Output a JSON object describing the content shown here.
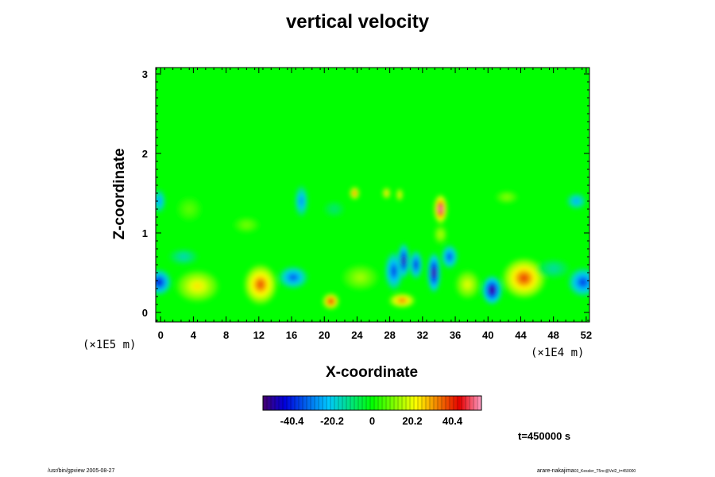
{
  "chart_data": {
    "type": "heatmap",
    "title": "vertical velocity",
    "xlabel": "X-coordinate",
    "ylabel": "Z-coordinate",
    "x_scale_note": "(×1E4 m)",
    "y_scale_note": "(×1E5 m)",
    "xlim": [
      -0.6,
      52.4
    ],
    "ylim": [
      -0.12,
      3.08
    ],
    "x_ticks": [
      0,
      4,
      8,
      12,
      16,
      20,
      24,
      28,
      32,
      36,
      40,
      44,
      48,
      52
    ],
    "x_tick_labels": [
      "0",
      "4",
      "8",
      "12",
      "16",
      "20",
      "24",
      "28",
      "32",
      "36",
      "40",
      "44",
      "48",
      "52"
    ],
    "y_ticks": [
      0,
      1,
      2,
      3
    ],
    "y_tick_labels": [
      "0",
      "1",
      "2",
      "3"
    ],
    "colorbar": {
      "range": [
        -55,
        55
      ],
      "ticks": [
        -40.4,
        -20.2,
        0,
        20.2,
        40.4
      ],
      "tick_labels": [
        "-40.4",
        "-20.2",
        "0",
        "20.2",
        "40.4"
      ]
    },
    "time_label": "t=450000 s",
    "background_value": 0,
    "features": [
      {
        "x": -0.2,
        "z": 0.38,
        "rx": 1.5,
        "rz": 0.16,
        "v": -44
      },
      {
        "x": 4.5,
        "z": 0.33,
        "rx": 2.6,
        "rz": 0.2,
        "v": 24
      },
      {
        "x": 12.2,
        "z": 0.35,
        "rx": 2.0,
        "rz": 0.25,
        "v": 37
      },
      {
        "x": 16.2,
        "z": 0.44,
        "rx": 1.8,
        "rz": 0.14,
        "v": -35
      },
      {
        "x": 20.8,
        "z": 0.14,
        "rx": 1.0,
        "rz": 0.1,
        "v": 45
      },
      {
        "x": 24.4,
        "z": 0.44,
        "rx": 2.2,
        "rz": 0.16,
        "v": 14
      },
      {
        "x": 29.5,
        "z": 0.15,
        "rx": 1.6,
        "rz": 0.09,
        "v": 36
      },
      {
        "x": 28.5,
        "z": 0.52,
        "rx": 1.1,
        "rz": 0.24,
        "v": -38
      },
      {
        "x": 29.7,
        "z": 0.65,
        "rx": 0.7,
        "rz": 0.22,
        "v": -52
      },
      {
        "x": 31.2,
        "z": 0.6,
        "rx": 0.8,
        "rz": 0.18,
        "v": -42
      },
      {
        "x": 33.4,
        "z": 0.5,
        "rx": 0.8,
        "rz": 0.25,
        "v": -55
      },
      {
        "x": 35.3,
        "z": 0.7,
        "rx": 1.0,
        "rz": 0.15,
        "v": -38
      },
      {
        "x": 37.5,
        "z": 0.35,
        "rx": 1.5,
        "rz": 0.18,
        "v": 20
      },
      {
        "x": 40.5,
        "z": 0.28,
        "rx": 1.2,
        "rz": 0.18,
        "v": -55
      },
      {
        "x": 44.4,
        "z": 0.43,
        "rx": 2.6,
        "rz": 0.25,
        "v": 38
      },
      {
        "x": 51.6,
        "z": 0.38,
        "rx": 1.8,
        "rz": 0.18,
        "v": -38
      },
      {
        "x": 48.0,
        "z": 0.55,
        "rx": 2.0,
        "rz": 0.12,
        "v": -14
      },
      {
        "x": 34.2,
        "z": 1.3,
        "rx": 0.8,
        "rz": 0.18,
        "v": 55
      },
      {
        "x": 23.7,
        "z": 1.5,
        "rx": 0.6,
        "rz": 0.08,
        "v": 38
      },
      {
        "x": 27.6,
        "z": 1.5,
        "rx": 0.5,
        "rz": 0.07,
        "v": 30
      },
      {
        "x": 29.2,
        "z": 1.48,
        "rx": 0.4,
        "rz": 0.08,
        "v": 28
      },
      {
        "x": 17.2,
        "z": 1.4,
        "rx": 0.8,
        "rz": 0.2,
        "v": -30
      },
      {
        "x": -0.2,
        "z": 1.4,
        "rx": 0.8,
        "rz": 0.15,
        "v": -28
      },
      {
        "x": 50.8,
        "z": 1.4,
        "rx": 1.2,
        "rz": 0.1,
        "v": -26
      },
      {
        "x": 10.5,
        "z": 1.1,
        "rx": 1.6,
        "rz": 0.1,
        "v": 10
      },
      {
        "x": 3.5,
        "z": 1.3,
        "rx": 1.5,
        "rz": 0.15,
        "v": 8
      },
      {
        "x": 2.8,
        "z": 0.7,
        "rx": 1.8,
        "rz": 0.1,
        "v": -16
      },
      {
        "x": 21.2,
        "z": 1.3,
        "rx": 1.3,
        "rz": 0.1,
        "v": -10
      },
      {
        "x": 42.3,
        "z": 1.45,
        "rx": 1.4,
        "rz": 0.08,
        "v": 12
      },
      {
        "x": 34.2,
        "z": 0.98,
        "rx": 0.8,
        "rz": 0.12,
        "v": 16
      }
    ]
  },
  "footer": {
    "left": "/usr/bin/gpview 2005-08-27",
    "right_main": "arare-nakajima",
    "right_small": "03_Kessler_T5nc@Vel2_t=450000"
  }
}
